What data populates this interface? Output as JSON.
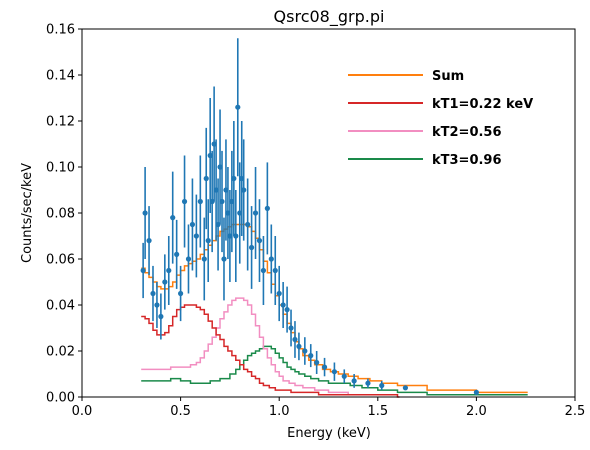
{
  "chart_data": {
    "type": "line",
    "title": "Qsrc08_grp.pi",
    "xlabel": "Energy (keV)",
    "ylabel": "Counts/sec/keV",
    "xlim": [
      0,
      2.5
    ],
    "ylim": [
      0,
      0.16
    ],
    "xticks": [
      0,
      0.5,
      1.0,
      1.5,
      2.0,
      2.5
    ],
    "xtick_labels": [
      "0.0",
      "0.5",
      "1.0",
      "1.5",
      "2.0",
      "2.5"
    ],
    "yticks": [
      0,
      0.02,
      0.04,
      0.06,
      0.08,
      0.1,
      0.12,
      0.14,
      0.16
    ],
    "ytick_labels": [
      "0.00",
      "0.02",
      "0.04",
      "0.06",
      "0.08",
      "0.10",
      "0.12",
      "0.14",
      "0.16"
    ],
    "grid": false,
    "legend_position": "upper-right",
    "legend_entries": [
      "Sum",
      "kT1=0.22 keV",
      "kT2=0.56",
      "kT3=0.96"
    ],
    "series": [
      {
        "name": "data",
        "kind": "errorbar",
        "color": "#1f77b4",
        "points": [
          [
            0.31,
            0.055,
            0.012
          ],
          [
            0.32,
            0.08,
            0.02
          ],
          [
            0.34,
            0.068,
            0.015
          ],
          [
            0.36,
            0.045,
            0.012
          ],
          [
            0.38,
            0.04,
            0.01
          ],
          [
            0.4,
            0.035,
            0.01
          ],
          [
            0.42,
            0.05,
            0.012
          ],
          [
            0.44,
            0.055,
            0.015
          ],
          [
            0.46,
            0.078,
            0.02
          ],
          [
            0.48,
            0.062,
            0.015
          ],
          [
            0.5,
            0.045,
            0.012
          ],
          [
            0.52,
            0.085,
            0.02
          ],
          [
            0.54,
            0.06,
            0.015
          ],
          [
            0.56,
            0.075,
            0.02
          ],
          [
            0.58,
            0.07,
            0.018
          ],
          [
            0.6,
            0.085,
            0.02
          ],
          [
            0.62,
            0.06,
            0.018
          ],
          [
            0.63,
            0.095,
            0.022
          ],
          [
            0.64,
            0.068,
            0.018
          ],
          [
            0.65,
            0.105,
            0.025
          ],
          [
            0.66,
            0.085,
            0.022
          ],
          [
            0.67,
            0.11,
            0.025
          ],
          [
            0.68,
            0.09,
            0.022
          ],
          [
            0.69,
            0.075,
            0.02
          ],
          [
            0.7,
            0.1,
            0.025
          ],
          [
            0.71,
            0.085,
            0.022
          ],
          [
            0.72,
            0.06,
            0.018
          ],
          [
            0.73,
            0.09,
            0.022
          ],
          [
            0.74,
            0.08,
            0.02
          ],
          [
            0.75,
            0.07,
            0.02
          ],
          [
            0.76,
            0.085,
            0.022
          ],
          [
            0.77,
            0.095,
            0.025
          ],
          [
            0.78,
            0.07,
            0.02
          ],
          [
            0.79,
            0.126,
            0.03
          ],
          [
            0.8,
            0.08,
            0.022
          ],
          [
            0.81,
            0.095,
            0.025
          ],
          [
            0.82,
            0.09,
            0.022
          ],
          [
            0.84,
            0.075,
            0.02
          ],
          [
            0.86,
            0.065,
            0.018
          ],
          [
            0.88,
            0.08,
            0.02
          ],
          [
            0.9,
            0.068,
            0.018
          ],
          [
            0.92,
            0.055,
            0.015
          ],
          [
            0.94,
            0.082,
            0.02
          ],
          [
            0.96,
            0.06,
            0.015
          ],
          [
            0.98,
            0.055,
            0.015
          ],
          [
            1.0,
            0.045,
            0.012
          ],
          [
            1.02,
            0.04,
            0.01
          ],
          [
            1.04,
            0.038,
            0.01
          ],
          [
            1.06,
            0.03,
            0.008
          ],
          [
            1.08,
            0.025,
            0.008
          ],
          [
            1.1,
            0.022,
            0.006
          ],
          [
            1.13,
            0.02,
            0.006
          ],
          [
            1.16,
            0.018,
            0.005
          ],
          [
            1.19,
            0.015,
            0.005
          ],
          [
            1.23,
            0.013,
            0.004
          ],
          [
            1.28,
            0.011,
            0.004
          ],
          [
            1.33,
            0.009,
            0.003
          ],
          [
            1.38,
            0.007,
            0.003
          ],
          [
            1.45,
            0.006,
            0.002
          ],
          [
            1.52,
            0.005,
            0.002
          ],
          [
            1.64,
            0.004,
            0.001
          ],
          [
            2.0,
            0.002,
            0.001
          ]
        ]
      },
      {
        "name": "Sum",
        "kind": "step",
        "color": "#ff7f0e",
        "points": [
          [
            0.3,
            0.056
          ],
          [
            0.32,
            0.054
          ],
          [
            0.34,
            0.052
          ],
          [
            0.36,
            0.05
          ],
          [
            0.38,
            0.048
          ],
          [
            0.4,
            0.047
          ],
          [
            0.42,
            0.047
          ],
          [
            0.44,
            0.048
          ],
          [
            0.46,
            0.05
          ],
          [
            0.48,
            0.053
          ],
          [
            0.5,
            0.055
          ],
          [
            0.52,
            0.057
          ],
          [
            0.54,
            0.058
          ],
          [
            0.56,
            0.059
          ],
          [
            0.58,
            0.06
          ],
          [
            0.6,
            0.062
          ],
          [
            0.62,
            0.064
          ],
          [
            0.64,
            0.066
          ],
          [
            0.66,
            0.068
          ],
          [
            0.68,
            0.07
          ],
          [
            0.7,
            0.072
          ],
          [
            0.72,
            0.073
          ],
          [
            0.74,
            0.074
          ],
          [
            0.76,
            0.075
          ],
          [
            0.78,
            0.075
          ],
          [
            0.8,
            0.075
          ],
          [
            0.82,
            0.075
          ],
          [
            0.84,
            0.074
          ],
          [
            0.86,
            0.072
          ],
          [
            0.88,
            0.069
          ],
          [
            0.9,
            0.064
          ],
          [
            0.92,
            0.059
          ],
          [
            0.94,
            0.054
          ],
          [
            0.96,
            0.049
          ],
          [
            0.98,
            0.044
          ],
          [
            1.0,
            0.04
          ],
          [
            1.02,
            0.036
          ],
          [
            1.04,
            0.032
          ],
          [
            1.06,
            0.028
          ],
          [
            1.08,
            0.024
          ],
          [
            1.1,
            0.021
          ],
          [
            1.12,
            0.018
          ],
          [
            1.15,
            0.016
          ],
          [
            1.18,
            0.014
          ],
          [
            1.22,
            0.012
          ],
          [
            1.26,
            0.011
          ],
          [
            1.3,
            0.01
          ],
          [
            1.35,
            0.009
          ],
          [
            1.4,
            0.008
          ],
          [
            1.46,
            0.007
          ],
          [
            1.52,
            0.006
          ],
          [
            1.6,
            0.005
          ],
          [
            1.75,
            0.003
          ],
          [
            2.0,
            0.002
          ],
          [
            2.25,
            0.002
          ]
        ]
      },
      {
        "name": "kT1=0.22 keV",
        "kind": "step",
        "color": "#d62728",
        "points": [
          [
            0.3,
            0.035
          ],
          [
            0.32,
            0.034
          ],
          [
            0.34,
            0.032
          ],
          [
            0.36,
            0.029
          ],
          [
            0.38,
            0.027
          ],
          [
            0.4,
            0.027
          ],
          [
            0.42,
            0.028
          ],
          [
            0.44,
            0.031
          ],
          [
            0.46,
            0.035
          ],
          [
            0.48,
            0.038
          ],
          [
            0.5,
            0.039
          ],
          [
            0.52,
            0.04
          ],
          [
            0.54,
            0.04
          ],
          [
            0.56,
            0.04
          ],
          [
            0.58,
            0.039
          ],
          [
            0.6,
            0.038
          ],
          [
            0.62,
            0.036
          ],
          [
            0.64,
            0.033
          ],
          [
            0.66,
            0.03
          ],
          [
            0.68,
            0.027
          ],
          [
            0.7,
            0.025
          ],
          [
            0.72,
            0.022
          ],
          [
            0.74,
            0.02
          ],
          [
            0.76,
            0.018
          ],
          [
            0.78,
            0.016
          ],
          [
            0.8,
            0.014
          ],
          [
            0.82,
            0.012
          ],
          [
            0.84,
            0.011
          ],
          [
            0.86,
            0.009
          ],
          [
            0.88,
            0.008
          ],
          [
            0.9,
            0.006
          ],
          [
            0.92,
            0.005
          ],
          [
            0.95,
            0.004
          ],
          [
            0.98,
            0.003
          ],
          [
            1.02,
            0.003
          ],
          [
            1.06,
            0.002
          ],
          [
            1.12,
            0.002
          ],
          [
            1.2,
            0.001
          ],
          [
            1.3,
            0.001
          ],
          [
            1.45,
            0.001
          ],
          [
            1.6,
            0.0
          ]
        ]
      },
      {
        "name": "kT2=0.56",
        "kind": "step",
        "color": "#f28ec1",
        "points": [
          [
            0.3,
            0.012
          ],
          [
            0.35,
            0.012
          ],
          [
            0.4,
            0.012
          ],
          [
            0.45,
            0.013
          ],
          [
            0.5,
            0.013
          ],
          [
            0.55,
            0.014
          ],
          [
            0.58,
            0.015
          ],
          [
            0.6,
            0.017
          ],
          [
            0.62,
            0.02
          ],
          [
            0.64,
            0.023
          ],
          [
            0.66,
            0.026
          ],
          [
            0.68,
            0.03
          ],
          [
            0.7,
            0.034
          ],
          [
            0.72,
            0.037
          ],
          [
            0.74,
            0.04
          ],
          [
            0.76,
            0.042
          ],
          [
            0.78,
            0.043
          ],
          [
            0.8,
            0.043
          ],
          [
            0.82,
            0.042
          ],
          [
            0.84,
            0.04
          ],
          [
            0.86,
            0.036
          ],
          [
            0.88,
            0.031
          ],
          [
            0.9,
            0.026
          ],
          [
            0.92,
            0.021
          ],
          [
            0.94,
            0.017
          ],
          [
            0.96,
            0.014
          ],
          [
            0.98,
            0.011
          ],
          [
            1.0,
            0.009
          ],
          [
            1.02,
            0.007
          ],
          [
            1.05,
            0.006
          ],
          [
            1.08,
            0.005
          ],
          [
            1.12,
            0.004
          ],
          [
            1.18,
            0.003
          ],
          [
            1.25,
            0.002
          ],
          [
            1.35,
            0.001
          ],
          [
            1.5,
            0.001
          ]
        ]
      },
      {
        "name": "kT3=0.96",
        "kind": "step",
        "color": "#1a8a4a",
        "points": [
          [
            0.3,
            0.007
          ],
          [
            0.35,
            0.007
          ],
          [
            0.4,
            0.007
          ],
          [
            0.45,
            0.008
          ],
          [
            0.5,
            0.007
          ],
          [
            0.55,
            0.006
          ],
          [
            0.6,
            0.006
          ],
          [
            0.65,
            0.007
          ],
          [
            0.7,
            0.008
          ],
          [
            0.75,
            0.01
          ],
          [
            0.78,
            0.012
          ],
          [
            0.8,
            0.014
          ],
          [
            0.82,
            0.016
          ],
          [
            0.84,
            0.018
          ],
          [
            0.86,
            0.019
          ],
          [
            0.88,
            0.02
          ],
          [
            0.9,
            0.021
          ],
          [
            0.92,
            0.022
          ],
          [
            0.94,
            0.022
          ],
          [
            0.96,
            0.021
          ],
          [
            0.98,
            0.019
          ],
          [
            1.0,
            0.017
          ],
          [
            1.02,
            0.015
          ],
          [
            1.04,
            0.013
          ],
          [
            1.06,
            0.012
          ],
          [
            1.08,
            0.011
          ],
          [
            1.1,
            0.01
          ],
          [
            1.13,
            0.009
          ],
          [
            1.16,
            0.008
          ],
          [
            1.2,
            0.007
          ],
          [
            1.25,
            0.006
          ],
          [
            1.3,
            0.006
          ],
          [
            1.36,
            0.005
          ],
          [
            1.42,
            0.004
          ],
          [
            1.5,
            0.003
          ],
          [
            1.6,
            0.002
          ],
          [
            1.75,
            0.001
          ],
          [
            2.0,
            0.001
          ],
          [
            2.25,
            0.001
          ]
        ]
      }
    ]
  }
}
